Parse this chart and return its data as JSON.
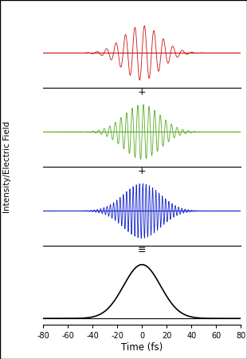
{
  "t_min": -80,
  "t_max": 80,
  "n_points": 5000,
  "gaussian_sigma": 15.0,
  "red_frequency": 0.13,
  "green_frequency": 0.22,
  "blue_frequency": 0.38,
  "red_amplitude": 0.9,
  "green_amplitude": 0.9,
  "blue_amplitude": 0.9,
  "red_color": "#cc1111",
  "green_color": "#55aa22",
  "blue_color": "#1122cc",
  "black_color": "#000000",
  "background_color": "#ffffff",
  "xlabel": "Time (fs)",
  "ylabel": "Intensity/Electric Field",
  "xlim": [
    -80,
    80
  ],
  "xticks": [
    -80,
    -60,
    -40,
    -20,
    0,
    20,
    40,
    60,
    80
  ],
  "figsize": [
    3.1,
    4.5
  ],
  "dpi": 100,
  "linewidth_wave": 0.6,
  "linewidth_baseline": 0.8
}
